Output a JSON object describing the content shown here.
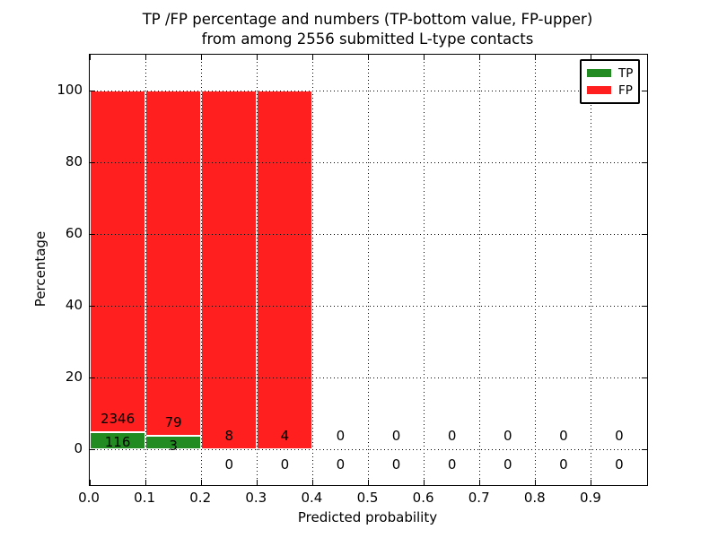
{
  "figure": {
    "title_line1": "TP /FP percentage and numbers (TP-bottom value, FP-upper)",
    "title_line2": "from among 2556 submitted L-type contacts"
  },
  "axes": {
    "xlabel": "Predicted probability",
    "ylabel": "Percentage"
  },
  "colors": {
    "tp": "#228b22",
    "fp": "#ff1f1f",
    "axis": "#000000",
    "background": "#ffffff"
  },
  "legend": {
    "position": "upper right",
    "items": [
      {
        "label": "TP",
        "series": "tp"
      },
      {
        "label": "FP",
        "series": "fp"
      }
    ]
  },
  "chart_data": {
    "type": "bar",
    "stacked": true,
    "normalized": "each bin scaled to 100% (TP bottom, FP upper)",
    "title": "TP /FP percentage and numbers (TP-bottom value, FP-upper) from among 2556 submitted L-type contacts",
    "total_contacts": 2556,
    "xlabel": "Predicted probability",
    "ylabel": "Percentage",
    "xlim": [
      0.0,
      1.0
    ],
    "ylim": [
      -10,
      110
    ],
    "x_ticks": [
      0.0,
      0.1,
      0.2,
      0.3,
      0.4,
      0.5,
      0.6,
      0.7,
      0.8,
      0.9
    ],
    "x_tick_labels": [
      "0.0",
      "0.1",
      "0.2",
      "0.3",
      "0.4",
      "0.5",
      "0.6",
      "0.7",
      "0.8",
      "0.9"
    ],
    "y_ticks": [
      0,
      20,
      40,
      60,
      80,
      100
    ],
    "y_tick_labels": [
      "0",
      "20",
      "40",
      "60",
      "80",
      "100"
    ],
    "bin_edges": [
      0.0,
      0.1,
      0.2,
      0.3,
      0.4,
      0.5,
      0.6,
      0.7,
      0.8,
      0.9,
      1.0
    ],
    "grid": true,
    "legend_position": "upper right",
    "series": [
      {
        "name": "TP",
        "values": [
          116,
          3,
          0,
          0,
          0,
          0,
          0,
          0,
          0,
          0
        ]
      },
      {
        "name": "FP",
        "values": [
          2346,
          79,
          8,
          4,
          0,
          0,
          0,
          0,
          0,
          0
        ]
      }
    ]
  }
}
